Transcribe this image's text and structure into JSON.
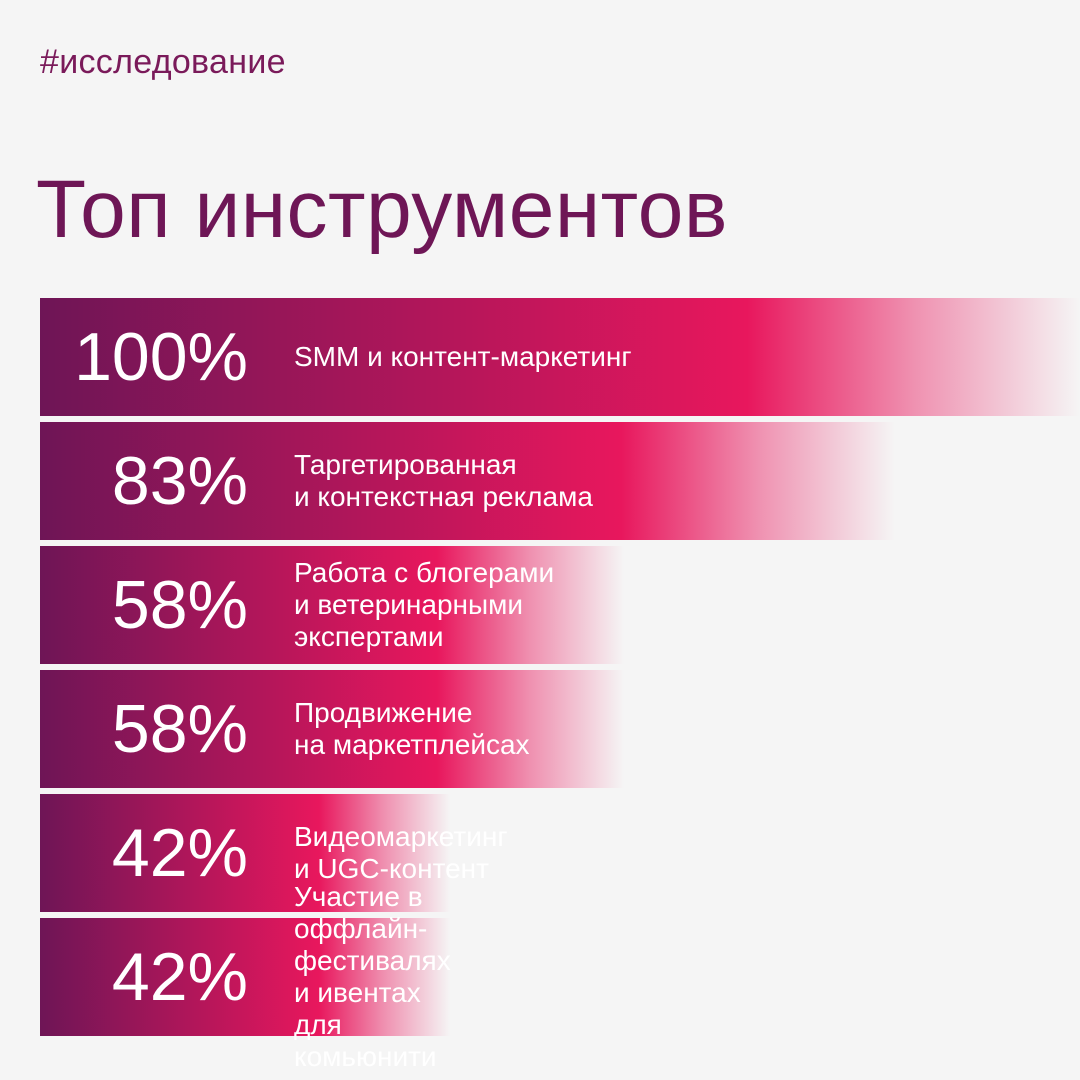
{
  "tag": "#исследование",
  "title": "Топ инструментов",
  "colors": {
    "background": "#f5f5f5",
    "bar_start": "#6e1556",
    "bar_mid": "#e8175d",
    "text_dark": "#6e1656"
  },
  "chart_data": {
    "type": "bar",
    "orientation": "horizontal",
    "title": "Топ инструментов",
    "unit": "%",
    "xlim": [
      0,
      100
    ],
    "categories": [
      "SMM и контент-маркетинг",
      "Таргетированная\nи контекстная реклама",
      "Работа с блогерами\nи ветеринарными экспертами",
      "Продвижение\nна маркетплейсах",
      "Видеомаркетинг и UGC-контент",
      "Участие в оффлайн-фестивалях\nи ивентах для комьюнити"
    ],
    "values": [
      100,
      83,
      58,
      58,
      42,
      42
    ],
    "value_labels": [
      "100%",
      "83%",
      "58%",
      "58%",
      "42%",
      "42%"
    ]
  }
}
